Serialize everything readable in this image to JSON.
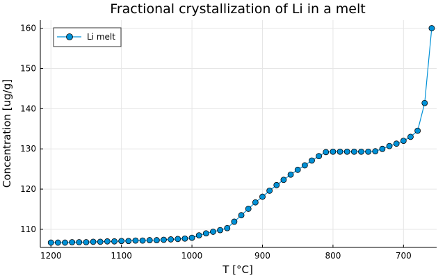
{
  "chart_data": {
    "type": "line",
    "title": "Fractional crystallization of Li in a melt",
    "xlabel": "T [°C]",
    "ylabel": "Concentration [ug/g]",
    "x_reversed": true,
    "xlim": [
      1215,
      653
    ],
    "ylim": [
      105.5,
      162
    ],
    "xticks": [
      1200,
      1100,
      1000,
      900,
      800,
      700
    ],
    "yticks": [
      110,
      120,
      130,
      140,
      150,
      160
    ],
    "grid": true,
    "legend": "top-left",
    "series": [
      {
        "name": "Li melt",
        "color": "#0091d7",
        "marker": "circle",
        "x": [
          1200,
          1190,
          1180,
          1170,
          1160,
          1150,
          1140,
          1130,
          1120,
          1110,
          1100,
          1090,
          1080,
          1070,
          1060,
          1050,
          1040,
          1030,
          1020,
          1010,
          1000,
          990,
          980,
          970,
          960,
          950,
          940,
          930,
          920,
          910,
          900,
          890,
          880,
          870,
          860,
          850,
          840,
          830,
          820,
          810,
          800,
          790,
          780,
          770,
          760,
          750,
          740,
          730,
          720,
          710,
          700,
          690,
          680,
          670,
          660
        ],
        "y": [
          106.7,
          106.7,
          106.7,
          106.8,
          106.8,
          106.8,
          106.9,
          106.9,
          107.0,
          107.0,
          107.1,
          107.1,
          107.2,
          107.2,
          107.3,
          107.3,
          107.4,
          107.5,
          107.6,
          107.7,
          107.9,
          108.5,
          109.0,
          109.4,
          109.8,
          110.3,
          111.9,
          113.5,
          115.1,
          116.7,
          118.1,
          119.6,
          121.0,
          122.3,
          123.6,
          124.8,
          125.9,
          127.1,
          128.2,
          129.2,
          129.3,
          129.3,
          129.3,
          129.3,
          129.3,
          129.3,
          129.4,
          130.0,
          130.7,
          131.3,
          132.0,
          133.0,
          134.5,
          141.4,
          160.0
        ]
      }
    ]
  }
}
